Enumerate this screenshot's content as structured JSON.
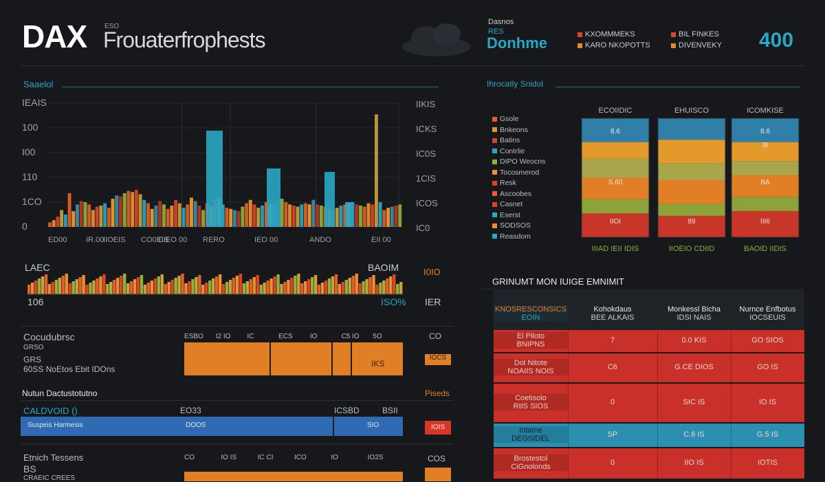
{
  "header": {
    "dax": "DAX",
    "sub_small": "ESO",
    "subtitle": "Frouaterfrophests",
    "doshboard_small": "Dasnos",
    "doshboard_small2": "RES",
    "doshboard": "Donhme",
    "legend": [
      {
        "label": "KXOMMMEKS",
        "color": "#d9452a"
      },
      {
        "label": "KARO NKOPOTTS",
        "color": "#e58a2a"
      },
      {
        "label": "BIL FINKES",
        "color": "#d9452a"
      },
      {
        "label": "DIVENVEKY",
        "color": "#e58a2a"
      }
    ],
    "kpi": "400"
  },
  "left": {
    "section_title": "Saaelol",
    "y_left_labels": [
      "IEAIS",
      "100",
      "I00",
      "110",
      "1CO",
      "0"
    ],
    "y_right_labels": [
      "IIKIS",
      "ICKS",
      "IC0S",
      "1CIS",
      "ICOS",
      "IC0"
    ],
    "x_labels": [
      "ED00",
      "IR.00",
      "IIOEIS",
      "CO0EIS",
      "CIEO 00",
      "RERO",
      "IEO 00",
      "ANDO",
      "EII 00"
    ],
    "mini_left_top": "LAEC",
    "mini_right_top": "BAOIM",
    "mini_left_bottom": "106",
    "mini_right_bottom": "ISO%",
    "mini_far_right_top": "I0IO",
    "mini_far_right_bottom": "IER",
    "mini_icon_label": "▲",
    "rows1": {
      "title": "Cocudubrsc",
      "sub1": "GRSO",
      "sub2": "GRS",
      "sub3": "60SS NoEtos Ebit IDOns",
      "ticks": [
        "ESBO",
        "I2 IO",
        "IC",
        "ECS",
        "IO",
        "C5 IO",
        "5O"
      ],
      "right_val": "CO",
      "right_box": "IOCS",
      "bar_label": "IKS"
    },
    "section2_title": "Nutun Dactustotutno",
    "section2_right": "Piseds",
    "rows2": {
      "title": "CALDVOID ()",
      "tick1": "EO33",
      "tick2": "ICSBD",
      "tick3": "BSII",
      "bar_left": "Suspeis Harmesis",
      "bar_mid": "DOOS",
      "bar_right": "SIO",
      "right_box": "IOIS"
    },
    "rows3": {
      "title": "Etnich Tessens",
      "sub": "BS",
      "sub2": "CRAEIC CREES",
      "ticks": [
        "CO",
        "IO IS",
        "IC CI",
        "ICO",
        "IO",
        "IO2S"
      ],
      "right_val": "COS"
    }
  },
  "right": {
    "section_title": "Ihrocatly Snidol",
    "col_labels": [
      "ECOIIDIC",
      "EHUISCO",
      "ICOMKISE"
    ],
    "bottom_labels": [
      "IIIAD IEII IDIS",
      "IIOEIO CDIID",
      "BAOID IIDIS"
    ],
    "legend_items": [
      "Gsole",
      "Bnkeons",
      "Batins",
      "Contrlie",
      "DIPO Weocns",
      "Tocosmerod",
      "Resk",
      "Ascoobes",
      "Casnet",
      "Eserst",
      "SODSOS",
      "Reasdom"
    ],
    "stack_values": [
      [
        "8.6",
        "",
        "",
        "S.60",
        "",
        "IIOI"
      ],
      [
        "",
        "",
        "",
        "",
        "",
        "89"
      ],
      [
        "8.6",
        "III",
        "",
        "BA",
        "",
        "III6"
      ]
    ],
    "table_title": "GRINUMT MON IUIGE EMNIMIT",
    "table_headers": [
      [
        "KNOSRESCONSICS",
        "EOIN"
      ],
      [
        "Kohokdaus",
        "BEE ALKAIS"
      ],
      [
        "Monkessl Bicha",
        "IDSI NAIS"
      ],
      [
        "Nurnce Enfbotus",
        "IOCSEUIS"
      ]
    ],
    "table_rows": [
      [
        "El Piloto\nBNIPNS",
        "7",
        "0.0 KIS",
        "GO SIOS"
      ],
      [
        "Dol Nitote\nNOAIIS NOIS",
        "C6",
        "G.CE DIOS",
        "GO IS"
      ],
      [
        "Coetisolo\nRIIS SIOS",
        "0",
        "SIC IS",
        "IO IS"
      ],
      [
        "Intame\nDEGSIDEL",
        "SP",
        "C.6 IS",
        "G.5 IS"
      ],
      [
        "Brostestol\nCiGnolonds",
        "0",
        "IIO IS",
        "IOTIS"
      ]
    ]
  },
  "chart_data": [
    {
      "type": "bar",
      "title": "Saaelol",
      "ylim": [
        0,
        220
      ],
      "series": [
        {
          "values": [
            8,
            12,
            18,
            30,
            22,
            60,
            28,
            40,
            46,
            44,
            40,
            30,
            36,
            38,
            42,
            34,
            50,
            56,
            54,
            60,
            64,
            62,
            66,
            58,
            48,
            42,
            32,
            38,
            46,
            40,
            32,
            38,
            48,
            42,
            34,
            40,
            52,
            46,
            38,
            30,
            42,
            36,
            48,
            52,
            40,
            34,
            32,
            30,
            28,
            36,
            42,
            48,
            40,
            34,
            38,
            44,
            40,
            42,
            46,
            50,
            44,
            40,
            38,
            36,
            40,
            42,
            40,
            48,
            40,
            38,
            36,
            32,
            30,
            34,
            38,
            40,
            42,
            44,
            40,
            38,
            36,
            42,
            40,
            200,
            44,
            30,
            34,
            36,
            38,
            40
          ]
        }
      ]
    },
    {
      "type": "bar",
      "title": "Ihrocatly Snidol",
      "categories": [
        "ECOIIDIC",
        "EHUISCO",
        "ICOMKISE"
      ],
      "series": [
        {
          "values": [
            20,
            18,
            22
          ]
        },
        {
          "values": [
            12,
            10,
            12
          ]
        },
        {
          "values": [
            18,
            20,
            18
          ]
        },
        {
          "values": [
            16,
            14,
            12
          ]
        },
        {
          "values": [
            14,
            20,
            16
          ]
        },
        {
          "values": [
            20,
            18,
            20
          ]
        }
      ]
    }
  ]
}
